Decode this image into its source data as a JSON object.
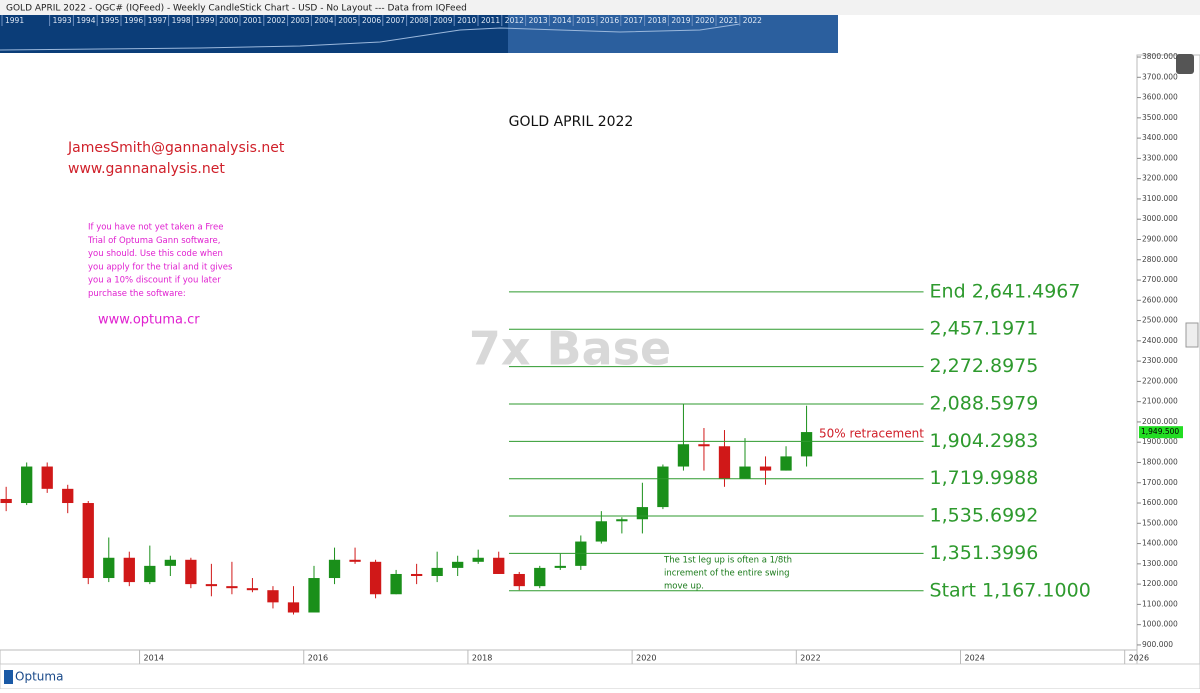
{
  "header": {
    "title": "GOLD APRIL 2022 - QGC# (IQFeed) - Weekly CandleStick Chart - USD - No Layout --- Data from IQFeed"
  },
  "navigator": {
    "years": [
      "1991",
      "1993",
      "1994",
      "1995",
      "1996",
      "1997",
      "1998",
      "1999",
      "2000",
      "2001",
      "2002",
      "2003",
      "2004",
      "2005",
      "2006",
      "2007",
      "2008",
      "2009",
      "2010",
      "2011",
      "2012",
      "2013",
      "2014",
      "2015",
      "2016",
      "2017",
      "2018",
      "2019",
      "2020",
      "2021",
      "2022"
    ]
  },
  "annotations": {
    "email": "JamesSmith@gannanalysis.net",
    "website": "www.gannanalysis.net",
    "promo": [
      "If you have not yet taken a Free",
      "Trial of Optuma Gann software,",
      "you should.   Use this code when",
      "you apply for the trial and it gives",
      "you a 10% discount if you later",
      "purchase the software:"
    ],
    "promo_link": "www.optuma.cr",
    "watermark": "7x Base",
    "retracement": "50% retracement",
    "note": [
      "The 1st leg up is often a 1/8th",
      "increment of the entire swing",
      "move up."
    ],
    "last_price": {
      "value": 1949.5,
      "label": "1,949.500"
    }
  },
  "footer": {
    "brand": "Optuma"
  },
  "chart_data": {
    "type": "candlestick",
    "title": "GOLD APRIL 2022",
    "up_color": "#1a8f1a",
    "down_color": "#d01818",
    "xlim": [
      2012.3,
      2026.15
    ],
    "ylim": [
      875,
      3810
    ],
    "xticks": [
      2014,
      2016,
      2018,
      2020,
      2022,
      2024,
      2026
    ],
    "yticks": [
      {
        "value": 900,
        "label": "900.000"
      },
      {
        "value": 1000,
        "label": "1000.000"
      },
      {
        "value": 1100,
        "label": "1100.000"
      },
      {
        "value": 1200,
        "label": "1200.000"
      },
      {
        "value": 1300,
        "label": "1300.000"
      },
      {
        "value": 1400,
        "label": "1400.000"
      },
      {
        "value": 1500,
        "label": "1500.000"
      },
      {
        "value": 1600,
        "label": "1600.000"
      },
      {
        "value": 1700,
        "label": "1700.000"
      },
      {
        "value": 1800,
        "label": "1800.000"
      },
      {
        "value": 1900,
        "label": "1900.000"
      },
      {
        "value": 2000,
        "label": "2000.000"
      },
      {
        "value": 2100,
        "label": "2100.000"
      },
      {
        "value": 2200,
        "label": "2200.000"
      },
      {
        "value": 2300,
        "label": "2300.000"
      },
      {
        "value": 2400,
        "label": "2400.000"
      },
      {
        "value": 2500,
        "label": "2500.000"
      },
      {
        "value": 2600,
        "label": "2600.000"
      },
      {
        "value": 2700,
        "label": "2700.000"
      },
      {
        "value": 2800,
        "label": "2800.000"
      },
      {
        "value": 2900,
        "label": "2900.000"
      },
      {
        "value": 3000,
        "label": "3000.000"
      },
      {
        "value": 3100,
        "label": "3100.000"
      },
      {
        "value": 3200,
        "label": "3200.000"
      },
      {
        "value": 3300,
        "label": "3300.000"
      },
      {
        "value": 3400,
        "label": "3400.000"
      },
      {
        "value": 3500,
        "label": "3500.000"
      },
      {
        "value": 3600,
        "label": "3600.000"
      },
      {
        "value": 3700,
        "label": "3700.000"
      },
      {
        "value": 3800,
        "label": "3800.000"
      }
    ],
    "candles": [
      {
        "x": 2012.375,
        "open": 1620,
        "high": 1680,
        "low": 1560,
        "close": 1600
      },
      {
        "x": 2012.625,
        "open": 1600,
        "high": 1800,
        "low": 1590,
        "close": 1780
      },
      {
        "x": 2012.875,
        "open": 1780,
        "high": 1800,
        "low": 1650,
        "close": 1670
      },
      {
        "x": 2013.125,
        "open": 1670,
        "high": 1690,
        "low": 1550,
        "close": 1600
      },
      {
        "x": 2013.375,
        "open": 1600,
        "high": 1610,
        "low": 1200,
        "close": 1230
      },
      {
        "x": 2013.625,
        "open": 1230,
        "high": 1430,
        "low": 1210,
        "close": 1330
      },
      {
        "x": 2013.875,
        "open": 1330,
        "high": 1360,
        "low": 1190,
        "close": 1210
      },
      {
        "x": 2014.125,
        "open": 1210,
        "high": 1390,
        "low": 1200,
        "close": 1290
      },
      {
        "x": 2014.375,
        "open": 1290,
        "high": 1340,
        "low": 1240,
        "close": 1320
      },
      {
        "x": 2014.625,
        "open": 1320,
        "high": 1330,
        "low": 1180,
        "close": 1200
      },
      {
        "x": 2014.875,
        "open": 1200,
        "high": 1300,
        "low": 1140,
        "close": 1190
      },
      {
        "x": 2015.125,
        "open": 1190,
        "high": 1310,
        "low": 1150,
        "close": 1180
      },
      {
        "x": 2015.375,
        "open": 1180,
        "high": 1230,
        "low": 1160,
        "close": 1170
      },
      {
        "x": 2015.625,
        "open": 1170,
        "high": 1190,
        "low": 1080,
        "close": 1110
      },
      {
        "x": 2015.875,
        "open": 1110,
        "high": 1190,
        "low": 1050,
        "close": 1060
      },
      {
        "x": 2016.125,
        "open": 1060,
        "high": 1290,
        "low": 1060,
        "close": 1230
      },
      {
        "x": 2016.375,
        "open": 1230,
        "high": 1380,
        "low": 1200,
        "close": 1320
      },
      {
        "x": 2016.625,
        "open": 1320,
        "high": 1380,
        "low": 1300,
        "close": 1310
      },
      {
        "x": 2016.875,
        "open": 1310,
        "high": 1320,
        "low": 1130,
        "close": 1150
      },
      {
        "x": 2017.125,
        "open": 1150,
        "high": 1270,
        "low": 1150,
        "close": 1250
      },
      {
        "x": 2017.375,
        "open": 1250,
        "high": 1300,
        "low": 1200,
        "close": 1240
      },
      {
        "x": 2017.625,
        "open": 1240,
        "high": 1360,
        "low": 1210,
        "close": 1280
      },
      {
        "x": 2017.875,
        "open": 1280,
        "high": 1340,
        "low": 1240,
        "close": 1310
      },
      {
        "x": 2018.125,
        "open": 1310,
        "high": 1370,
        "low": 1300,
        "close": 1330
      },
      {
        "x": 2018.375,
        "open": 1330,
        "high": 1360,
        "low": 1250,
        "close": 1250
      },
      {
        "x": 2018.625,
        "open": 1250,
        "high": 1260,
        "low": 1170,
        "close": 1190
      },
      {
        "x": 2018.875,
        "open": 1190,
        "high": 1290,
        "low": 1180,
        "close": 1280
      },
      {
        "x": 2019.125,
        "open": 1280,
        "high": 1350,
        "low": 1270,
        "close": 1290
      },
      {
        "x": 2019.375,
        "open": 1290,
        "high": 1440,
        "low": 1270,
        "close": 1410
      },
      {
        "x": 2019.625,
        "open": 1410,
        "high": 1560,
        "low": 1400,
        "close": 1510
      },
      {
        "x": 2019.875,
        "open": 1510,
        "high": 1530,
        "low": 1450,
        "close": 1520
      },
      {
        "x": 2020.125,
        "open": 1520,
        "high": 1700,
        "low": 1450,
        "close": 1580
      },
      {
        "x": 2020.375,
        "open": 1580,
        "high": 1790,
        "low": 1570,
        "close": 1780
      },
      {
        "x": 2020.625,
        "open": 1780,
        "high": 2090,
        "low": 1760,
        "close": 1890
      },
      {
        "x": 2020.875,
        "open": 1890,
        "high": 1970,
        "low": 1760,
        "close": 1880
      },
      {
        "x": 2021.125,
        "open": 1880,
        "high": 1960,
        "low": 1680,
        "close": 1720
      },
      {
        "x": 2021.375,
        "open": 1720,
        "high": 1920,
        "low": 1720,
        "close": 1780
      },
      {
        "x": 2021.625,
        "open": 1780,
        "high": 1830,
        "low": 1690,
        "close": 1760
      },
      {
        "x": 2021.875,
        "open": 1760,
        "high": 1880,
        "low": 1760,
        "close": 1830
      },
      {
        "x": 2022.125,
        "open": 1830,
        "high": 2080,
        "low": 1780,
        "close": 1950
      }
    ],
    "levels_x": [
      2018.5,
      2023.55
    ],
    "level_color": "#2e9a2e",
    "levels": [
      {
        "value": 1167.1,
        "label": "Start 1,167.1000"
      },
      {
        "value": 1351.3996,
        "label": "1,351.3996"
      },
      {
        "value": 1535.6992,
        "label": "1,535.6992"
      },
      {
        "value": 1719.9988,
        "label": "1,719.9988"
      },
      {
        "value": 1904.2983,
        "label": "1,904.2983"
      },
      {
        "value": 2088.5979,
        "label": "2,088.5979"
      },
      {
        "value": 2272.8975,
        "label": "2,272.8975"
      },
      {
        "value": 2457.1971,
        "label": "2,457.1971"
      },
      {
        "value": 2641.4967,
        "label": "End 2,641.4967"
      }
    ]
  }
}
